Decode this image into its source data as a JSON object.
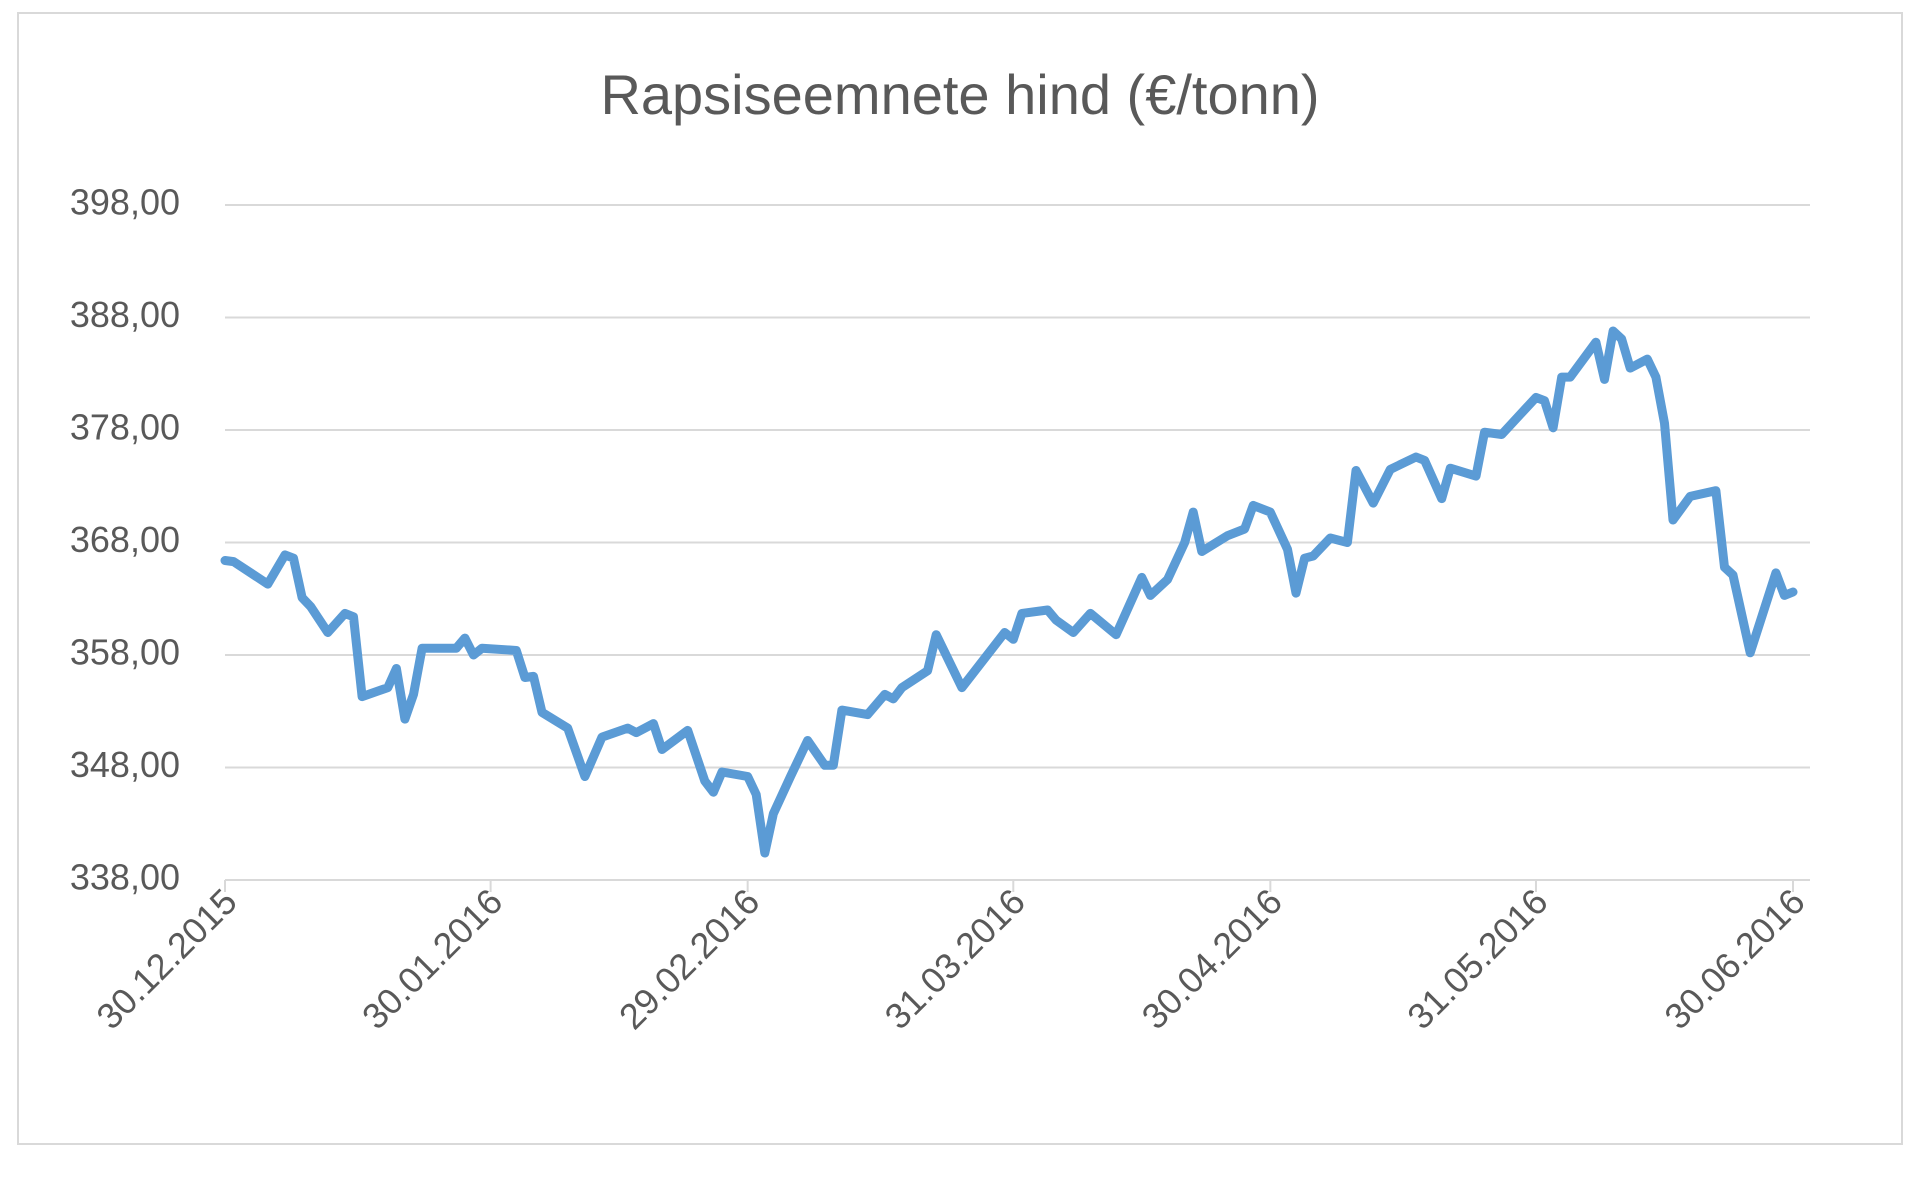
{
  "chart_data": {
    "type": "line",
    "title": "Rapsiseemnete hind (€/tonn)",
    "xlabel": "",
    "ylabel": "",
    "ylim": [
      338,
      398
    ],
    "yticks": [
      "398,00",
      "388,00",
      "378,00",
      "368,00",
      "358,00",
      "348,00",
      "338,00"
    ],
    "ytick_values": [
      398,
      388,
      378,
      368,
      358,
      348,
      338
    ],
    "xlim": [
      "2015-12-30",
      "2016-06-30"
    ],
    "xticks": [
      "30.12.2015",
      "30.01.2016",
      "29.02.2016",
      "31.03.2016",
      "30.04.2016",
      "31.05.2016",
      "30.06.2016"
    ],
    "xtick_dates": [
      "2015-12-30",
      "2016-01-30",
      "2016-02-29",
      "2016-03-31",
      "2016-04-30",
      "2016-05-31",
      "2016-06-30"
    ],
    "grid": "horizontal",
    "legend": "none",
    "line_color": "#5B9BD5",
    "series": [
      {
        "x": [
          "2015-12-30",
          "2015-12-31",
          "2016-01-04",
          "2016-01-06",
          "2016-01-07",
          "2016-01-08",
          "2016-01-09",
          "2016-01-11",
          "2016-01-13",
          "2016-01-14",
          "2016-01-15",
          "2016-01-18",
          "2016-01-19",
          "2016-01-20",
          "2016-01-21",
          "2016-01-22",
          "2016-01-26",
          "2016-01-27",
          "2016-01-28",
          "2016-01-29",
          "2016-02-02",
          "2016-02-03",
          "2016-02-04",
          "2016-02-05",
          "2016-02-08",
          "2016-02-10",
          "2016-02-12",
          "2016-02-15",
          "2016-02-16",
          "2016-02-18",
          "2016-02-19",
          "2016-02-22",
          "2016-02-24",
          "2016-02-25",
          "2016-02-26",
          "2016-02-29",
          "2016-03-01",
          "2016-03-02",
          "2016-03-03",
          "2016-03-05",
          "2016-03-07",
          "2016-03-09",
          "2016-03-10",
          "2016-03-11",
          "2016-03-14",
          "2016-03-16",
          "2016-03-17",
          "2016-03-18",
          "2016-03-21",
          "2016-03-22",
          "2016-03-25",
          "2016-03-30",
          "2016-03-31",
          "2016-04-01",
          "2016-04-04",
          "2016-04-05",
          "2016-04-07",
          "2016-04-09",
          "2016-04-12",
          "2016-04-15",
          "2016-04-16",
          "2016-04-18",
          "2016-04-20",
          "2016-04-21",
          "2016-04-22",
          "2016-04-25",
          "2016-04-27",
          "2016-04-28",
          "2016-04-30",
          "2016-05-02",
          "2016-05-03",
          "2016-05-04",
          "2016-05-05",
          "2016-05-07",
          "2016-05-09",
          "2016-05-10",
          "2016-05-12",
          "2016-05-14",
          "2016-05-17",
          "2016-05-18",
          "2016-05-20",
          "2016-05-21",
          "2016-05-24",
          "2016-05-25",
          "2016-05-27",
          "2016-05-31",
          "2016-06-01",
          "2016-06-02",
          "2016-06-03",
          "2016-06-04",
          "2016-06-07",
          "2016-06-08",
          "2016-06-09",
          "2016-06-10",
          "2016-06-11",
          "2016-06-13",
          "2016-06-14",
          "2016-06-15",
          "2016-06-16",
          "2016-06-18",
          "2016-06-21",
          "2016-06-22",
          "2016-06-23",
          "2016-06-25",
          "2016-06-28",
          "2016-06-29",
          "2016-06-30"
        ],
        "values": [
          366.4,
          366.3,
          364.3,
          366.9,
          366.6,
          363.1,
          362.3,
          360.0,
          361.7,
          361.4,
          354.3,
          355.1,
          356.8,
          352.3,
          354.5,
          358.6,
          358.6,
          359.5,
          358.0,
          358.6,
          358.4,
          356.0,
          356.1,
          352.9,
          351.5,
          347.2,
          350.7,
          351.5,
          351.1,
          351.9,
          349.6,
          351.3,
          346.8,
          345.8,
          347.6,
          347.2,
          345.6,
          340.4,
          343.9,
          347.2,
          350.4,
          348.2,
          348.2,
          353.1,
          352.7,
          354.5,
          354.1,
          355.1,
          356.6,
          359.8,
          355.1,
          360.0,
          359.4,
          361.7,
          362.0,
          361.1,
          360.0,
          361.7,
          359.8,
          364.9,
          363.3,
          364.7,
          368.0,
          370.7,
          367.2,
          368.6,
          369.2,
          371.3,
          370.7,
          367.4,
          363.5,
          366.6,
          366.8,
          368.4,
          368.0,
          374.4,
          371.5,
          374.5,
          375.6,
          375.3,
          371.9,
          374.6,
          373.9,
          377.8,
          377.6,
          380.9,
          380.6,
          378.2,
          382.7,
          382.7,
          385.8,
          382.5,
          386.8,
          386.1,
          383.5,
          384.3,
          382.7,
          378.6,
          370.0,
          372.1,
          372.6,
          365.8,
          365.1,
          358.2,
          365.3,
          363.3,
          363.6
        ]
      }
    ]
  }
}
